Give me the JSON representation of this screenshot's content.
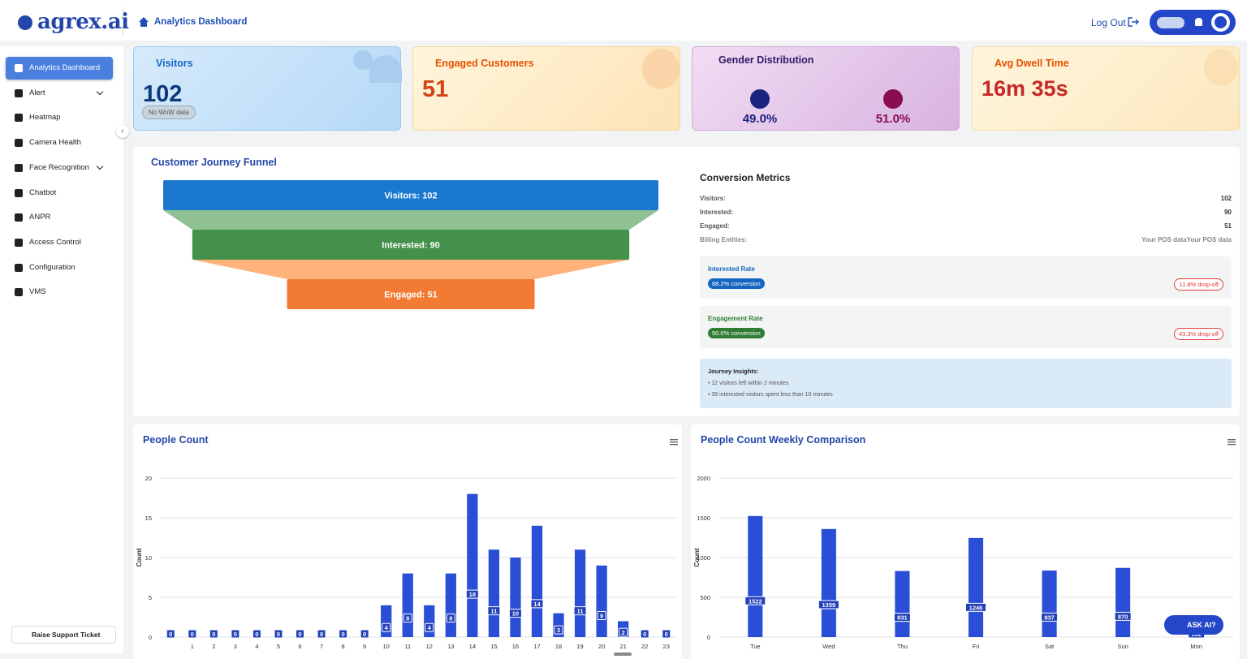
{
  "header": {
    "logo": "agrex.ai",
    "breadcrumb": "Analytics Dashboard",
    "logout": "Log Out"
  },
  "sidebar": {
    "items": [
      {
        "label": "Analytics Dashboard",
        "active": true
      },
      {
        "label": "Alert",
        "submenu": true
      },
      {
        "label": "Heatmap"
      },
      {
        "label": "Camera Health"
      },
      {
        "label": "Face Recognition",
        "submenu": true
      },
      {
        "label": "Chatbot"
      },
      {
        "label": "ANPR"
      },
      {
        "label": "Access Control"
      },
      {
        "label": "Configuration"
      },
      {
        "label": "VMS"
      }
    ],
    "support": "Raise Support Ticket"
  },
  "cards": {
    "visitors": {
      "title": "Visitors",
      "value": "102",
      "note": "No WoW data"
    },
    "engaged": {
      "title": "Engaged Customers",
      "value": "51"
    },
    "gender": {
      "title": "Gender Distribution",
      "male": "49.0%",
      "female": "51.0%"
    },
    "dwell": {
      "title": "Avg Dwell Time",
      "value": "16m 35s"
    }
  },
  "funnel": {
    "title": "Customer Journey Funnel",
    "stages": [
      {
        "label": "Visitors: 102",
        "value": 102,
        "color": "#1a78cf"
      },
      {
        "label": "Interested: 90",
        "value": 90,
        "color": "#43914a"
      },
      {
        "label": "Engaged: 51",
        "value": 51,
        "color": "#f37a32"
      }
    ]
  },
  "metrics": {
    "title": "Conversion Metrics",
    "rows": [
      [
        "Visitors:",
        "102"
      ],
      [
        "Interested:",
        "90"
      ],
      [
        "Engaged:",
        "51"
      ],
      [
        "Billing Entities:",
        "Your POS dataYour POS data"
      ]
    ],
    "rates": [
      {
        "title": "Interested Rate",
        "conversion": "88.2% conversion",
        "dropoff": "11.8% drop-off"
      },
      {
        "title": "Engagement Rate",
        "conversion": "50.0% conversion",
        "dropoff": "43.3% drop-off"
      }
    ],
    "insights": {
      "title": "Journey Insights:",
      "items": [
        "• 12 visitors left within 2 minutes",
        "• 39 interested visitors spent less than 10 minutes"
      ]
    }
  },
  "chart_data": [
    {
      "type": "bar",
      "title": "People Count",
      "ylabel": "Count",
      "color": "#2a4fd6",
      "categories": [
        null,
        "1",
        "2",
        "3",
        "4",
        "5",
        "6",
        "7",
        "8",
        "9",
        "10",
        "11",
        "12",
        "13",
        "14",
        "15",
        "16",
        "17",
        "18",
        "19",
        "20",
        "21",
        "22",
        "23"
      ],
      "values": [
        0,
        0,
        0,
        0,
        0,
        0,
        0,
        0,
        0,
        0,
        4,
        8,
        4,
        8,
        18,
        11,
        10,
        14,
        3,
        11,
        9,
        2,
        0,
        0
      ],
      "ylim": [
        0,
        20
      ],
      "yticks": [
        0,
        5,
        10,
        15,
        20
      ],
      "grid": true
    },
    {
      "type": "bar",
      "title": "People Count Weekly Comparison",
      "ylabel": "Count",
      "color": "#2a4fd6",
      "categories": [
        "Tue",
        "Wed",
        "Thu",
        "Fri",
        "Sat",
        "Sun",
        "Mon"
      ],
      "values": [
        1522,
        1359,
        831,
        1246,
        837,
        870,
        102
      ],
      "ylim": [
        0,
        2000
      ],
      "yticks": [
        0,
        500,
        1000,
        1500,
        2000
      ],
      "grid": true
    }
  ],
  "ask_ai": "ASK AI?"
}
